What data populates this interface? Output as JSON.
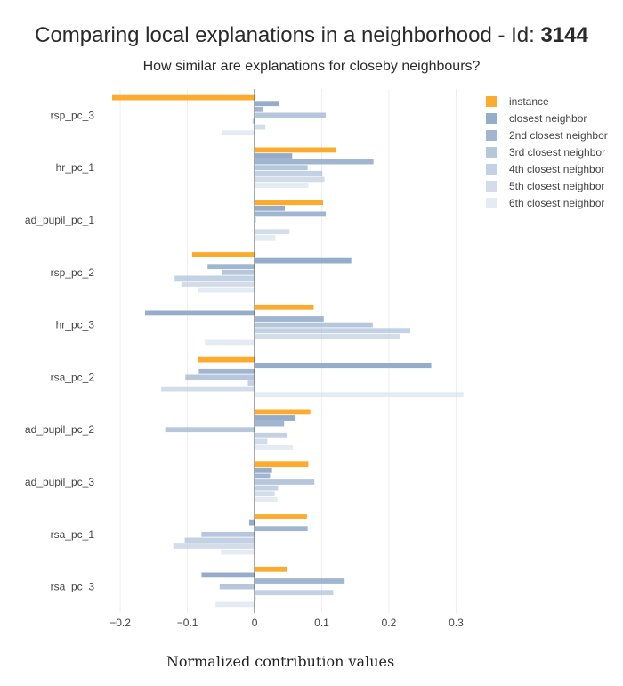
{
  "header": {
    "title_prefix": "Comparing local explanations in a neighborhood - Id: ",
    "title_id": "3144",
    "subtitle": "How similar are explanations for closeby neighbours?"
  },
  "chart_data": {
    "type": "bar",
    "orientation": "horizontal",
    "xlabel": "Normalized contribution values",
    "xlim": [
      -0.22,
      0.31
    ],
    "xticks": [
      -0.2,
      -0.1,
      0,
      0.1,
      0.2,
      0.3
    ],
    "xtick_labels": [
      "−0.2",
      "−0.1",
      "0",
      "0.1",
      "0.2",
      "0.3"
    ],
    "grid": true,
    "legend_position": "top-right",
    "categories": [
      "rsp_pc_3",
      "hr_pc_1",
      "ad_pupil_pc_1",
      "rsp_pc_2",
      "hr_pc_3",
      "rsa_pc_2",
      "ad_pupil_pc_2",
      "ad_pupil_pc_3",
      "rsa_pc_1",
      "rsa_pc_3"
    ],
    "series": [
      {
        "name": "instance",
        "color": "#fcab2e",
        "opacity": 1.0,
        "values": [
          -0.212,
          0.121,
          0.102,
          -0.093,
          0.088,
          -0.085,
          0.083,
          0.08,
          0.078,
          0.048
        ]
      },
      {
        "name": "closest neighbor",
        "color": "#8fa8c8",
        "opacity": 0.95,
        "values": [
          0.037,
          0.056,
          0.045,
          0.144,
          -0.163,
          0.263,
          0.061,
          0.026,
          -0.008,
          -0.079
        ]
      },
      {
        "name": "2nd closest neighbor",
        "color": "#8fa8c8",
        "opacity": 0.85,
        "values": [
          0.012,
          0.177,
          0.106,
          -0.07,
          0.103,
          -0.083,
          0.044,
          0.023,
          0.079,
          0.134
        ]
      },
      {
        "name": "3rd closest neighbor",
        "color": "#9db4d0",
        "opacity": 0.75,
        "values": [
          0.106,
          0.079,
          0.002,
          -0.048,
          0.176,
          -0.103,
          -0.133,
          0.089,
          -0.079,
          -0.052
        ]
      },
      {
        "name": "4th closest neighbor",
        "color": "#a9bed8",
        "opacity": 0.7,
        "values": [
          -0.003,
          0.101,
          0.001,
          -0.119,
          0.232,
          -0.01,
          0.049,
          0.035,
          -0.104,
          0.117
        ]
      },
      {
        "name": "5th closest neighbor",
        "color": "#bccbdf",
        "opacity": 0.65,
        "values": [
          0.016,
          0.104,
          0.052,
          -0.109,
          0.217,
          -0.139,
          0.019,
          0.03,
          -0.121,
          0.002
        ]
      },
      {
        "name": "6th closest neighbor",
        "color": "#d2deeb",
        "opacity": 0.6,
        "values": [
          -0.049,
          0.08,
          0.031,
          -0.084,
          -0.074,
          0.311,
          0.057,
          0.034,
          -0.05,
          -0.058
        ]
      }
    ]
  }
}
